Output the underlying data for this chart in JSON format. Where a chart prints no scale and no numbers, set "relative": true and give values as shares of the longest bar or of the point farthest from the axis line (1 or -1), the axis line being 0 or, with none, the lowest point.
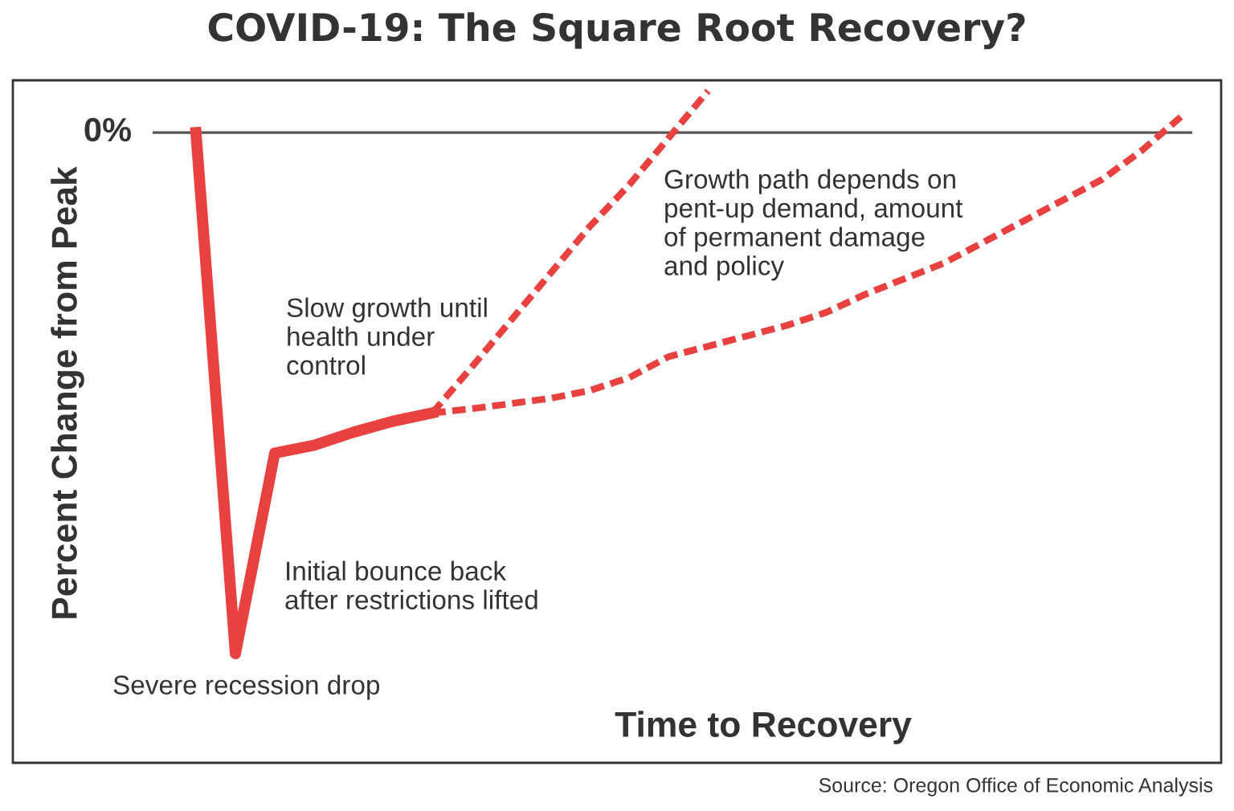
{
  "chart_data": {
    "type": "line",
    "title": "COVID-19: The Square Root Recovery?",
    "xlabel": "Time to Recovery",
    "ylabel": "Percent Change from Peak",
    "relative": true,
    "categories": [
      null,
      null,
      null,
      null,
      null,
      null,
      null,
      null,
      null,
      null,
      null,
      null,
      null,
      null,
      null,
      null,
      null,
      null,
      null,
      null,
      null,
      null,
      null,
      null,
      null,
      null
    ],
    "series": [
      {
        "color": "#e8413f",
        "line_style": "solid",
        "values": [
          0,
          -1,
          -0.615,
          -0.6,
          -0.575,
          -0.554,
          -0.538,
          null,
          null,
          null,
          null,
          null,
          null,
          null,
          null,
          null,
          null,
          null,
          null,
          null,
          null,
          null,
          null,
          null,
          null,
          null
        ]
      },
      {
        "color": "#e8413f",
        "line_style": "dashed",
        "values": [
          null,
          null,
          null,
          null,
          null,
          null,
          -0.538,
          -0.45,
          -0.36,
          -0.27,
          -0.18,
          -0.1,
          -0.01,
          0.08,
          null,
          null,
          null,
          null,
          null,
          null,
          null,
          null,
          null,
          null,
          null,
          null
        ]
      },
      {
        "color": "#e8413f",
        "line_style": "dashed",
        "values": [
          null,
          null,
          null,
          null,
          null,
          null,
          -0.538,
          -0.53,
          -0.52,
          -0.51,
          -0.495,
          -0.47,
          -0.43,
          -0.41,
          -0.39,
          -0.37,
          -0.345,
          -0.31,
          -0.28,
          -0.25,
          -0.21,
          -0.17,
          -0.13,
          -0.09,
          -0.035,
          0.03
        ]
      }
    ],
    "ref_lines": [
      {
        "axis": "y",
        "value": 0,
        "label": "0%",
        "color": "#555555"
      }
    ],
    "legend": false,
    "marker": "none",
    "annotations": [
      "Severe recession drop",
      "Initial bounce back\nafter restrictions lifted",
      "Slow growth until\nhealth under\ncontrol",
      "Growth path depends on\npent-up demand, amount\nof permanent damage\nand policy",
      "Source: Oregon Office of Economic Analysis"
    ]
  }
}
